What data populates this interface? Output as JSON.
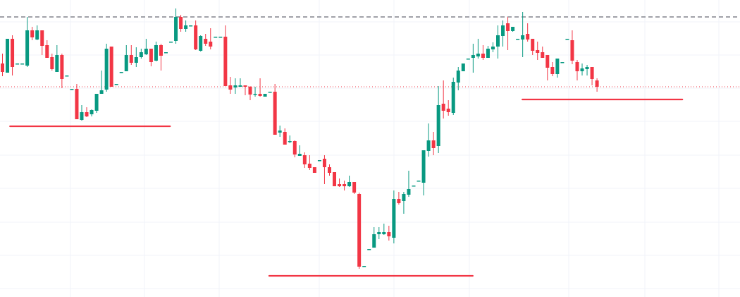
{
  "chart_data": {
    "type": "candlestick",
    "title": "",
    "xlabel": "",
    "ylabel": "",
    "ylim": [
      0,
      421
    ],
    "grid": true,
    "legend": "none",
    "colors": {
      "up": "#089981",
      "down": "#F23645",
      "grid": "#f0f3fa",
      "support_line": "#F23645",
      "reference_line": "#434651",
      "last_price_line": "#F23645"
    },
    "ohlc_fields": [
      "open",
      "high",
      "low",
      "close"
    ],
    "candles": [
      [
        331,
        345,
        313,
        319
      ],
      [
        318,
        366,
        318,
        366
      ],
      [
        366,
        371,
        314,
        326
      ],
      [
        331,
        331,
        331,
        331
      ],
      [
        331,
        331,
        331,
        331
      ],
      [
        328,
        397,
        326,
        378
      ],
      [
        378,
        383,
        364,
        368
      ],
      [
        365,
        385,
        364,
        378
      ],
      [
        378,
        378,
        343,
        356
      ],
      [
        357,
        364,
        339,
        339
      ],
      [
        340,
        345,
        321,
        323
      ],
      [
        319,
        357,
        319,
        343
      ],
      [
        343,
        345,
        296,
        309
      ],
      [
        314,
        314,
        314,
        314
      ],
      [
        295,
        295,
        295,
        295
      ],
      [
        295,
        302,
        252,
        252
      ],
      [
        251,
        272,
        250,
        262
      ],
      [
        262,
        269,
        255,
        256
      ],
      [
        259,
        266,
        256,
        265
      ],
      [
        264,
        288,
        261,
        288
      ],
      [
        288,
        321,
        288,
        293
      ],
      [
        294,
        359,
        291,
        352
      ],
      [
        355,
        355,
        298,
        298
      ],
      [
        302,
        302,
        302,
        302
      ],
      [
        319,
        319,
        319,
        319
      ],
      [
        320,
        357,
        320,
        343
      ],
      [
        343,
        357,
        329,
        332
      ],
      [
        332,
        354,
        326,
        340
      ],
      [
        340,
        352,
        338,
        347
      ],
      [
        344,
        366,
        343,
        352
      ],
      [
        352,
        352,
        327,
        333
      ],
      [
        335,
        362,
        334,
        357
      ],
      [
        357,
        359,
        321,
        342
      ],
      [
        347,
        347,
        347,
        347
      ],
      [
        362,
        362,
        362,
        362
      ],
      [
        363,
        409,
        359,
        397
      ],
      [
        397,
        400,
        376,
        380
      ],
      [
        380,
        392,
        376,
        385
      ],
      [
        385,
        385,
        385,
        385
      ],
      [
        385,
        392,
        350,
        351
      ],
      [
        349,
        371,
        348,
        370
      ],
      [
        366,
        373,
        356,
        359
      ],
      [
        362,
        381,
        351,
        355
      ],
      [
        369,
        369,
        369,
        369
      ],
      [
        369,
        369,
        369,
        369
      ],
      [
        369,
        385,
        299,
        299
      ],
      [
        300,
        312,
        288,
        294
      ],
      [
        297,
        310,
        288,
        300
      ],
      [
        298,
        310,
        298,
        300
      ],
      [
        300,
        300,
        286,
        298
      ],
      [
        298,
        299,
        279,
        287
      ],
      [
        287,
        298,
        284,
        288
      ],
      [
        288,
        310,
        284,
        285
      ],
      [
        284,
        288,
        284,
        288
      ],
      [
        291,
        291,
        291,
        291
      ],
      [
        291,
        302,
        230,
        230
      ],
      [
        233,
        243,
        227,
        236
      ],
      [
        234,
        239,
        216,
        216
      ],
      [
        220,
        229,
        218,
        221
      ],
      [
        221,
        222,
        198,
        202
      ],
      [
        200,
        215,
        200,
        203
      ],
      [
        201,
        205,
        183,
        188
      ],
      [
        189,
        201,
        180,
        183
      ],
      [
        184,
        184,
        176,
        176
      ],
      [
        194,
        194,
        194,
        194
      ],
      [
        196,
        201,
        160,
        184
      ],
      [
        184,
        188,
        172,
        176
      ],
      [
        177,
        177,
        157,
        157
      ],
      [
        160,
        168,
        156,
        157
      ],
      [
        160,
        165,
        151,
        157
      ],
      [
        157,
        172,
        156,
        163
      ],
      [
        163,
        163,
        146,
        148
      ],
      [
        146,
        148,
        40,
        43
      ],
      [
        44,
        44,
        44,
        44
      ],
      [
        68,
        68,
        68,
        68
      ],
      [
        70,
        99,
        70,
        89
      ],
      [
        89,
        99,
        82,
        92
      ],
      [
        89,
        104,
        88,
        92
      ],
      [
        92,
        101,
        80,
        86
      ],
      [
        84,
        151,
        76,
        139
      ],
      [
        139,
        149,
        131,
        133
      ],
      [
        136,
        149,
        118,
        146
      ],
      [
        145,
        179,
        142,
        153
      ],
      [
        158,
        158,
        158,
        158
      ],
      [
        165,
        165,
        165,
        165
      ],
      [
        162,
        208,
        144,
        208
      ],
      [
        207,
        246,
        199,
        222
      ],
      [
        222,
        234,
        201,
        211
      ],
      [
        214,
        299,
        204,
        272
      ],
      [
        274,
        307,
        253,
        264
      ],
      [
        267,
        279,
        257,
        262
      ],
      [
        261,
        311,
        258,
        305
      ],
      [
        304,
        326,
        293,
        321
      ],
      [
        320,
        331,
        320,
        331
      ],
      [
        338,
        338,
        338,
        338
      ],
      [
        339,
        359,
        318,
        343
      ],
      [
        341,
        366,
        338,
        345
      ],
      [
        345,
        357,
        336,
        339
      ],
      [
        339,
        356,
        339,
        352
      ],
      [
        351,
        361,
        347,
        355
      ],
      [
        355,
        385,
        338,
        371
      ],
      [
        370,
        392,
        355,
        385
      ],
      [
        388,
        397,
        350,
        377
      ],
      [
        377,
        383,
        376,
        383
      ],
      [
        366,
        366,
        366,
        366
      ],
      [
        365,
        404,
        340,
        371
      ],
      [
        373,
        388,
        362,
        365
      ],
      [
        366,
        366,
        343,
        349
      ],
      [
        350,
        362,
        336,
        346
      ],
      [
        347,
        355,
        339,
        339
      ],
      [
        343,
        343,
        307,
        325
      ],
      [
        326,
        333,
        313,
        316
      ],
      [
        316,
        338,
        311,
        338
      ],
      [
        333,
        333,
        333,
        333
      ],
      [
        366,
        366,
        366,
        366
      ],
      [
        364,
        378,
        330,
        335
      ],
      [
        333,
        336,
        307,
        320
      ],
      [
        320,
        331,
        314,
        324
      ],
      [
        323,
        329,
        314,
        326
      ],
      [
        326,
        326,
        300,
        309
      ],
      [
        307,
        310,
        291,
        298
      ]
    ],
    "reference_lines": [
      {
        "kind": "dashed-high",
        "price": 397
      },
      {
        "kind": "dotted-last-price",
        "price": 298
      }
    ],
    "support_lines": [
      {
        "price": 242,
        "from_bar": 1.6,
        "to_bar": 33.9
      },
      {
        "price": 30,
        "from_bar": 53.9,
        "to_bar": 95.0
      },
      {
        "price": 280,
        "from_bar": 105.0,
        "to_bar": 137.3
      }
    ]
  }
}
